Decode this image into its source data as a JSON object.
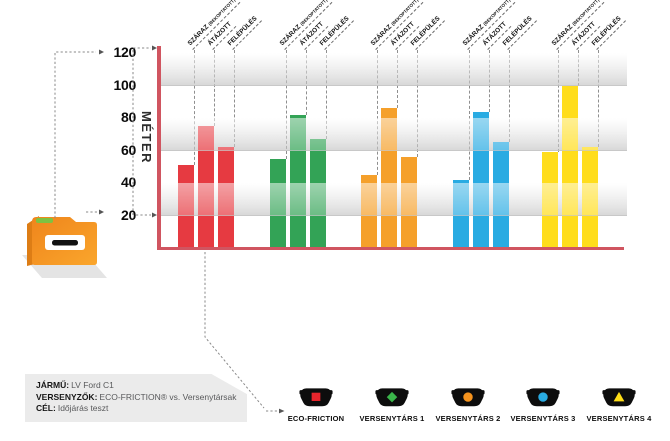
{
  "chart_data": {
    "type": "bar",
    "title": "",
    "ylabel": "MÉTER",
    "yticks": [
      120,
      100,
      80,
      60,
      40,
      20
    ],
    "ylim": [
      0,
      120
    ],
    "grid": "alternating shaded bands every 20 m (20-40, 60-80, 100-120)",
    "legend_position": "bottom",
    "conditions": [
      {
        "label": "SZÁRAZ",
        "note": "(BEKOPTATOTT)"
      },
      {
        "label": "ÁTÁZOTT",
        "note": ""
      },
      {
        "label": "FELÉPÜLÉS",
        "note": ""
      }
    ],
    "series": [
      {
        "name": "ECO-FRICTION",
        "color": "#e63a41",
        "values": [
          51,
          75,
          62
        ]
      },
      {
        "name": "VERSENYTÁRS 1",
        "color": "#33a356",
        "values": [
          55,
          82,
          67
        ]
      },
      {
        "name": "VERSENYTÁRS 2",
        "color": "#f5a02b",
        "values": [
          45,
          86,
          56
        ]
      },
      {
        "name": "VERSENYTÁRS 3",
        "color": "#29abe2",
        "values": [
          42,
          84,
          65
        ]
      },
      {
        "name": "VERSENYTÁRS 4",
        "color": "#ffdd1c",
        "values": [
          59,
          100,
          62
        ]
      }
    ],
    "axis_color": "#d05560"
  },
  "legend": [
    {
      "label": "ECO-FRICTION",
      "marker": "square",
      "color": "#e8252c"
    },
    {
      "label": "VERSENYTÁRS 1",
      "marker": "diamond",
      "color": "#3ab54a"
    },
    {
      "label": "VERSENYTÁRS 2",
      "marker": "circle",
      "color": "#f7941e"
    },
    {
      "label": "VERSENYTÁRS 3",
      "marker": "circle",
      "color": "#29abe2"
    },
    {
      "label": "VERSENYTÁRS 4",
      "marker": "triangle",
      "color": "#ffde17"
    }
  ],
  "info_box": {
    "rows": [
      {
        "label": "JÁRMŰ:",
        "value": "LV Ford C1"
      },
      {
        "label": "VERSENYZŐK:",
        "value": "ECO-FRICTION® vs. Versenytársak"
      },
      {
        "label": "CÉL:",
        "value": "Időjárás teszt"
      }
    ]
  }
}
